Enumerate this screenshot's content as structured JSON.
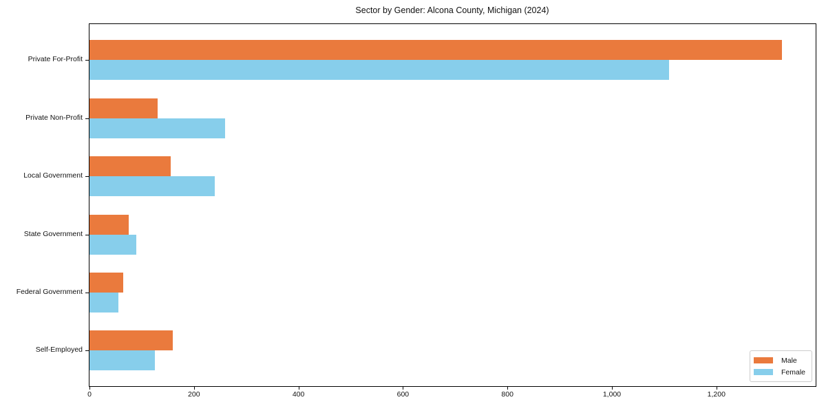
{
  "chart_data": {
    "type": "bar",
    "orientation": "horizontal",
    "title": "Sector by Gender: Alcona County, Michigan (2024)",
    "categories": [
      "Private For-Profit",
      "Private Non-Profit",
      "Local Government",
      "State Government",
      "Federal Government",
      "Self-Employed"
    ],
    "series": [
      {
        "name": "Male",
        "color": "#ea7a3d",
        "values": [
          1325,
          130,
          155,
          75,
          65,
          160
        ]
      },
      {
        "name": "Female",
        "color": "#87ceeb",
        "values": [
          1110,
          260,
          240,
          90,
          55,
          125
        ]
      }
    ],
    "xlabel": "",
    "ylabel": "",
    "xlim": [
      0,
      1390
    ],
    "xticks": {
      "values": [
        0,
        200,
        400,
        600,
        800,
        1000,
        1200
      ],
      "labels": [
        "0",
        "200",
        "400",
        "600",
        "800",
        "1,000",
        "1,200"
      ]
    },
    "legend": {
      "position": "lower-right",
      "entries": [
        "Male",
        "Female"
      ]
    },
    "grid": false,
    "background_color": "#ffffff",
    "spine_color": "#000000"
  }
}
